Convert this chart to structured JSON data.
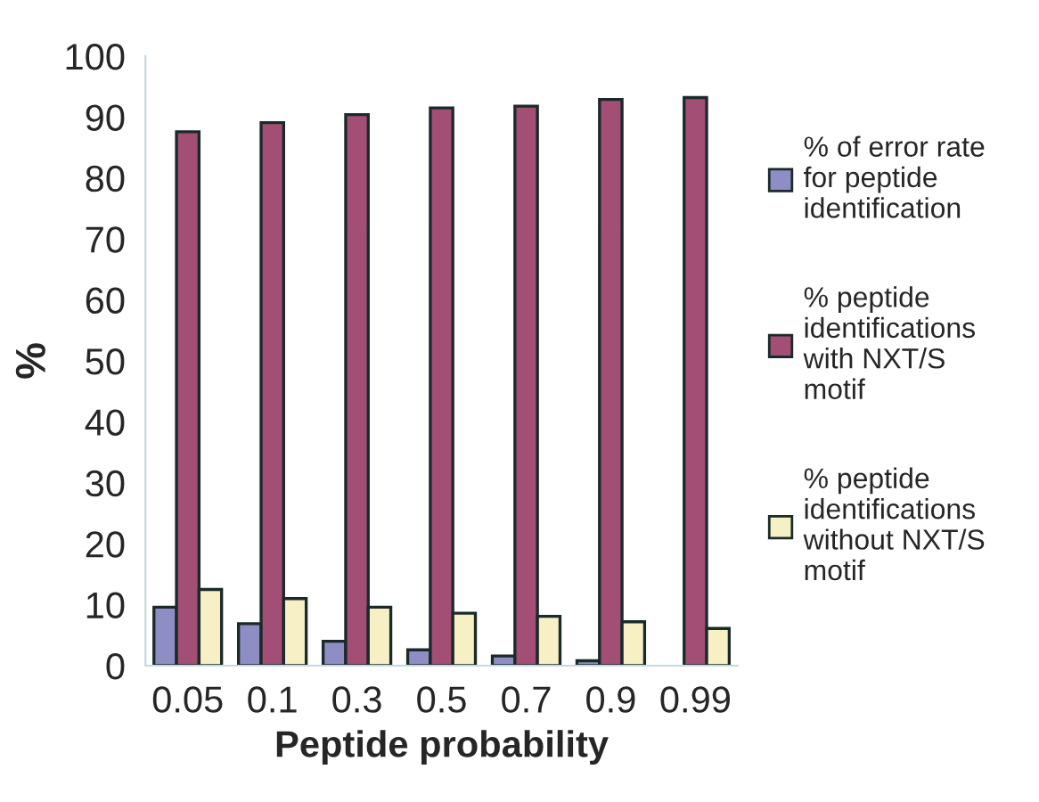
{
  "chart_data": {
    "type": "bar",
    "xlabel": "Peptide probability",
    "ylabel": "%",
    "categories": [
      "0.05",
      "0.1",
      "0.3",
      "0.5",
      "0.7",
      "0.9",
      "0.99"
    ],
    "series": [
      {
        "name": "% of error rate\nfor peptide\nidentification",
        "color": "#8e8ec4",
        "values": [
          9.6,
          6.9,
          4.0,
          2.6,
          1.6,
          0.8,
          null
        ]
      },
      {
        "name": "% peptide\nidentifications\nwith NXT/S\nmotif",
        "color": "#a34e74",
        "values": [
          87.6,
          89.1,
          90.4,
          91.5,
          91.8,
          92.9,
          93.2
        ]
      },
      {
        "name": "% peptide\nidentifications\nwithout NXT/S\nmotif",
        "color": "#f6f0c4",
        "values": [
          12.5,
          11.0,
          9.6,
          8.6,
          8.1,
          7.2,
          6.1
        ]
      }
    ],
    "ylim": [
      0,
      100
    ],
    "yticks": [
      0,
      10,
      20,
      30,
      40,
      50,
      60,
      70,
      80,
      90,
      100
    ],
    "grid": false,
    "legend": "right"
  }
}
